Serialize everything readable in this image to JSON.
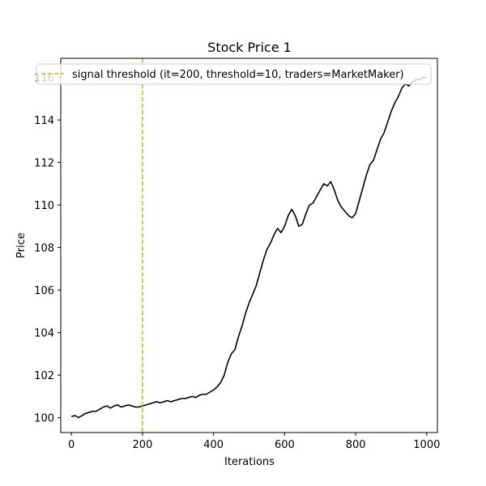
{
  "chart_data": {
    "type": "line",
    "title": "Stock Price 1",
    "xlabel": "Iterations",
    "ylabel": "Price",
    "xlim": [
      -30,
      1030
    ],
    "ylim": [
      99.3,
      116.9
    ],
    "xticks": [
      0,
      200,
      400,
      600,
      800,
      1000
    ],
    "yticks": [
      100,
      102,
      104,
      106,
      108,
      110,
      112,
      114,
      116
    ],
    "grid": false,
    "legend_placement": "top",
    "series": [
      {
        "color": "#000000",
        "x": [
          0,
          10,
          20,
          30,
          40,
          50,
          60,
          70,
          80,
          90,
          100,
          110,
          120,
          130,
          140,
          150,
          160,
          170,
          180,
          190,
          200,
          210,
          220,
          230,
          240,
          250,
          260,
          270,
          280,
          290,
          300,
          310,
          320,
          330,
          340,
          350,
          360,
          370,
          380,
          390,
          400,
          410,
          420,
          430,
          440,
          450,
          460,
          470,
          480,
          490,
          500,
          510,
          520,
          530,
          540,
          550,
          560,
          570,
          580,
          590,
          600,
          610,
          620,
          630,
          640,
          650,
          660,
          670,
          680,
          690,
          700,
          710,
          720,
          730,
          740,
          750,
          760,
          770,
          780,
          790,
          800,
          810,
          820,
          830,
          840,
          850,
          860,
          870,
          880,
          890,
          900,
          910,
          920,
          930,
          940,
          950,
          960,
          970,
          980,
          990,
          1000
        ],
        "y": [
          100.05,
          100.1,
          100.0,
          100.1,
          100.2,
          100.25,
          100.3,
          100.3,
          100.4,
          100.5,
          100.55,
          100.45,
          100.55,
          100.6,
          100.5,
          100.55,
          100.6,
          100.55,
          100.5,
          100.5,
          100.55,
          100.6,
          100.65,
          100.7,
          100.75,
          100.7,
          100.75,
          100.8,
          100.75,
          100.8,
          100.85,
          100.9,
          100.9,
          100.95,
          101.0,
          100.95,
          101.05,
          101.1,
          101.1,
          101.2,
          101.3,
          101.45,
          101.65,
          102.0,
          102.6,
          103.0,
          103.2,
          103.8,
          104.3,
          104.9,
          105.4,
          105.8,
          106.2,
          106.8,
          107.4,
          107.9,
          108.2,
          108.6,
          108.9,
          108.7,
          109.0,
          109.5,
          109.8,
          109.5,
          109.0,
          109.1,
          109.6,
          110.0,
          110.1,
          110.4,
          110.7,
          111.0,
          110.9,
          111.1,
          110.7,
          110.2,
          109.9,
          109.7,
          109.5,
          109.4,
          109.6,
          110.2,
          110.8,
          111.4,
          111.9,
          112.1,
          112.6,
          113.1,
          113.4,
          113.9,
          114.4,
          114.8,
          115.1,
          115.5,
          115.7,
          115.6,
          115.8,
          115.9,
          115.9,
          116.0,
          116.0
        ]
      }
    ],
    "annotations": [
      {
        "type": "vline",
        "x": 200,
        "color": "#bfbf00",
        "style": "dashed",
        "label": "signal threshold (it=200, threshold=10, traders=MarketMaker)"
      }
    ]
  }
}
